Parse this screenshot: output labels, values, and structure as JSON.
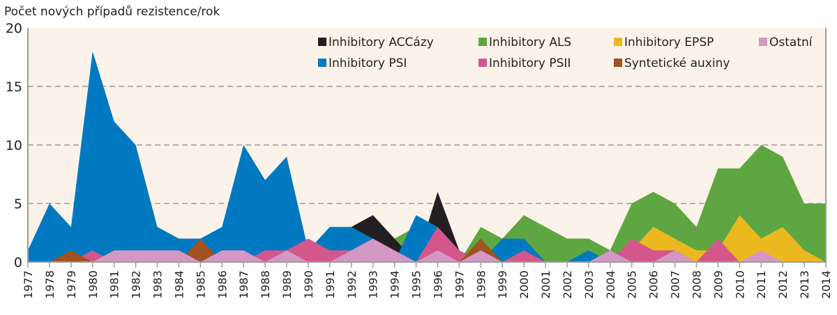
{
  "chart_data": {
    "type": "area",
    "title": "",
    "ylabel": "Počet nových případů rezistence/rok",
    "xlabel": "",
    "ylim": [
      0,
      20
    ],
    "yticks": [
      0,
      5,
      10,
      15,
      20
    ],
    "grid": true,
    "legend_position": "top-right",
    "x": [
      1977,
      1978,
      1979,
      1980,
      1981,
      1982,
      1983,
      1984,
      1985,
      1986,
      1987,
      1988,
      1989,
      1990,
      1991,
      1992,
      1993,
      1994,
      1995,
      1996,
      1997,
      1998,
      1999,
      2000,
      2001,
      2002,
      2003,
      2004,
      2005,
      2006,
      2007,
      2008,
      2009,
      2010,
      2011,
      2012,
      2013,
      2014
    ],
    "series": [
      {
        "name": "Inhibitory ALS",
        "color": "#5ea642",
        "values": [
          0,
          0,
          0,
          0,
          0,
          0,
          0,
          0,
          0,
          0,
          0,
          0,
          0,
          0,
          0,
          0,
          2,
          2,
          3,
          0,
          0,
          3,
          2,
          4,
          3,
          2,
          2,
          1,
          5,
          6,
          5,
          3,
          8,
          8,
          10,
          9,
          5,
          5
        ]
      },
      {
        "name": "Inhibitory ACCázy",
        "color": "#231f20",
        "values": [
          0,
          0,
          0,
          0,
          0,
          0,
          0,
          0,
          0,
          0,
          0,
          0,
          0,
          0,
          0,
          3,
          4,
          2,
          0,
          6,
          1,
          0,
          0,
          0,
          0,
          0,
          0,
          0,
          0,
          0,
          0,
          0,
          0,
          0,
          0,
          0,
          0,
          0
        ]
      },
      {
        "name": "Inhibitory PSI",
        "color": "#0079c1",
        "values": [
          1,
          5,
          3,
          18,
          12,
          10,
          3,
          2,
          2,
          3,
          10,
          7,
          9,
          1,
          3,
          3,
          2,
          0,
          4,
          3,
          0,
          0,
          2,
          2,
          0,
          0,
          1,
          0,
          0,
          0,
          0,
          0,
          0,
          0,
          0,
          0,
          0,
          0
        ]
      },
      {
        "name": "Inhibitory EPSP",
        "color": "#ebb81f",
        "values": [
          0,
          0,
          0,
          0,
          0,
          0,
          0,
          0,
          0,
          0,
          0,
          0,
          0,
          0,
          0,
          0,
          0,
          0,
          0,
          0,
          0,
          0,
          0,
          0,
          0,
          0,
          0,
          0,
          1,
          3,
          2,
          1,
          1,
          4,
          2,
          3,
          1,
          0
        ]
      },
      {
        "name": "Inhibitory PSII",
        "color": "#d4578c",
        "values": [
          0,
          0,
          0,
          1,
          0,
          0,
          0,
          0,
          0,
          0,
          0,
          1,
          1,
          2,
          1,
          1,
          0,
          0,
          0,
          3,
          1,
          0,
          0,
          1,
          0,
          0,
          0,
          0,
          2,
          1,
          1,
          0,
          2,
          0,
          0,
          0,
          0,
          0
        ]
      },
      {
        "name": "Syntetické auxiny",
        "color": "#a0531f",
        "values": [
          0,
          0,
          1,
          0,
          0,
          0,
          0,
          0,
          2,
          0,
          0,
          0,
          0,
          0,
          0,
          0,
          0,
          0,
          0,
          0,
          0,
          2,
          0,
          0,
          0,
          0,
          0,
          0,
          0,
          0,
          0,
          0,
          0,
          0,
          0,
          0,
          0,
          0
        ]
      },
      {
        "name": "Ostatní",
        "color": "#d397c4",
        "values": [
          0,
          0,
          0,
          0,
          1,
          1,
          1,
          1,
          0,
          1,
          1,
          0,
          1,
          0,
          0,
          1,
          2,
          1,
          0,
          1,
          0,
          1,
          0,
          0,
          0,
          0,
          0,
          1,
          0,
          0,
          1,
          0,
          0,
          0,
          1,
          0,
          0,
          0
        ]
      }
    ],
    "legend_order": [
      "Inhibitory ACCázy",
      "Inhibitory ALS",
      "Inhibitory EPSP",
      "Ostatní",
      "Inhibitory PSI",
      "Inhibitory PSII",
      "Syntetické auxiny"
    ]
  }
}
